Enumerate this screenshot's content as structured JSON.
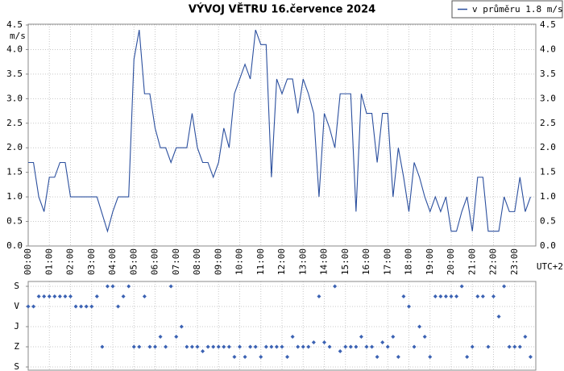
{
  "chart_data": [
    {
      "type": "line",
      "title": "VÝVOJ VĚTRU  16.července 2024",
      "ylabel": "m/s",
      "xlabel": "UTC+2",
      "x": [
        0,
        0.25,
        0.5,
        0.75,
        1,
        1.25,
        1.5,
        1.75,
        2,
        2.25,
        2.5,
        2.75,
        3,
        3.25,
        3.5,
        3.75,
        4,
        4.25,
        4.5,
        4.75,
        5,
        5.25,
        5.5,
        5.75,
        6,
        6.25,
        6.5,
        6.75,
        7,
        7.25,
        7.5,
        7.75,
        8,
        8.25,
        8.5,
        8.75,
        9,
        9.25,
        9.5,
        9.75,
        10,
        10.25,
        10.5,
        10.75,
        11,
        11.25,
        11.5,
        11.75,
        12,
        12.25,
        12.5,
        12.75,
        13,
        13.25,
        13.5,
        13.75,
        14,
        14.25,
        14.5,
        14.75,
        15,
        15.25,
        15.5,
        15.75,
        16,
        16.25,
        16.5,
        16.75,
        17,
        17.25,
        17.5,
        17.75,
        18,
        18.25,
        18.5,
        18.75,
        19,
        19.25,
        19.5,
        19.75,
        20,
        20.25,
        20.5,
        20.75,
        21,
        21.25,
        21.5,
        21.75,
        22,
        22.25,
        22.5,
        22.75,
        23,
        23.25,
        23.5,
        23.75
      ],
      "series": [
        {
          "name": "v průměru 1.8 m/s",
          "color": "#2b4f9e",
          "values": [
            1.7,
            1.7,
            1.0,
            0.7,
            1.4,
            1.4,
            1.7,
            1.7,
            1.0,
            1.0,
            1.0,
            1.0,
            1.0,
            1.0,
            0.65,
            0.3,
            0.7,
            1.0,
            1.0,
            1.0,
            3.8,
            4.4,
            3.1,
            3.1,
            2.4,
            2.0,
            2.0,
            1.7,
            2.0,
            2.0,
            2.0,
            2.7,
            2.0,
            1.7,
            1.7,
            1.4,
            1.7,
            2.4,
            2.0,
            3.1,
            3.4,
            3.7,
            3.4,
            4.4,
            4.1,
            4.1,
            1.4,
            3.4,
            3.1,
            3.4,
            3.4,
            2.7,
            3.4,
            3.1,
            2.7,
            1.0,
            2.7,
            2.4,
            2.0,
            3.1,
            3.1,
            3.1,
            0.7,
            3.1,
            2.7,
            2.7,
            1.7,
            2.7,
            2.7,
            1.0,
            2.0,
            1.4,
            0.7,
            1.7,
            1.4,
            1.0,
            0.7,
            1.0,
            0.7,
            1.0,
            0.3,
            0.3,
            0.7,
            1.0,
            0.3,
            1.4,
            1.4,
            0.3,
            0.3,
            0.3,
            1.0,
            0.7,
            0.7,
            1.4,
            0.7,
            1.0
          ]
        }
      ],
      "xlim": [
        0,
        24
      ],
      "xticks": [
        {
          "value": 0,
          "label": "00:00"
        },
        {
          "value": 1,
          "label": "01:00"
        },
        {
          "value": 2,
          "label": "02:00"
        },
        {
          "value": 3,
          "label": "03:00"
        },
        {
          "value": 4,
          "label": "04:00"
        },
        {
          "value": 5,
          "label": "05:00"
        },
        {
          "value": 6,
          "label": "06:00"
        },
        {
          "value": 7,
          "label": "07:00"
        },
        {
          "value": 8,
          "label": "08:00"
        },
        {
          "value": 9,
          "label": "09:00"
        },
        {
          "value": 10,
          "label": "10:00"
        },
        {
          "value": 11,
          "label": "11:00"
        },
        {
          "value": 12,
          "label": "12:00"
        },
        {
          "value": 13,
          "label": "13:00"
        },
        {
          "value": 14,
          "label": "14:00"
        },
        {
          "value": 15,
          "label": "15:00"
        },
        {
          "value": 16,
          "label": "16:00"
        },
        {
          "value": 17,
          "label": "17:00"
        },
        {
          "value": 18,
          "label": "18:00"
        },
        {
          "value": 19,
          "label": "19:00"
        },
        {
          "value": 20,
          "label": "20:00"
        },
        {
          "value": 21,
          "label": "21:00"
        },
        {
          "value": 22,
          "label": "22:00"
        },
        {
          "value": 23,
          "label": "23:00"
        }
      ],
      "ylim": [
        0,
        4.5
      ],
      "yticks": [
        {
          "value": 0,
          "label": "0.0"
        },
        {
          "value": 0.5,
          "label": "0.5"
        },
        {
          "value": 1,
          "label": "1.0"
        },
        {
          "value": 1.5,
          "label": "1.5"
        },
        {
          "value": 2,
          "label": "2.0"
        },
        {
          "value": 2.5,
          "label": "2.5"
        },
        {
          "value": 3,
          "label": "3.0"
        },
        {
          "value": 3.5,
          "label": "3.5"
        },
        {
          "value": 4,
          "label": "4.0"
        },
        {
          "value": 4.5,
          "label": "4.5"
        }
      ],
      "grid": true,
      "legend": "top-right"
    },
    {
      "type": "scatter",
      "color": "#3b62b3",
      "x": [
        0,
        0.25,
        0.5,
        0.75,
        1,
        1.25,
        1.5,
        1.75,
        2,
        2.25,
        2.5,
        2.75,
        3,
        3.25,
        3.5,
        3.75,
        4,
        4.25,
        4.5,
        4.75,
        5,
        5.25,
        5.5,
        5.75,
        6,
        6.25,
        6.5,
        6.75,
        7,
        7.25,
        7.5,
        7.75,
        8,
        8.25,
        8.5,
        8.75,
        9,
        9.25,
        9.5,
        9.75,
        10,
        10.25,
        10.5,
        10.75,
        11,
        11.25,
        11.5,
        11.75,
        12,
        12.25,
        12.5,
        12.75,
        13,
        13.25,
        13.5,
        13.75,
        14,
        14.25,
        14.5,
        14.75,
        15,
        15.25,
        15.5,
        15.75,
        16,
        16.25,
        16.5,
        16.75,
        17,
        17.25,
        17.5,
        17.75,
        18,
        18.25,
        18.5,
        18.75,
        19,
        19.25,
        19.5,
        19.75,
        20,
        20.25,
        20.5,
        20.75,
        21,
        21.25,
        21.5,
        21.75,
        22,
        22.25,
        22.5,
        22.75,
        23,
        23.25,
        23.5,
        23.75
      ],
      "values": [
        90,
        90,
        45,
        45,
        45,
        45,
        45,
        45,
        45,
        90,
        90,
        90,
        90,
        45,
        270,
        0,
        0,
        90,
        45,
        0,
        270,
        270,
        45,
        270,
        270,
        225,
        270,
        0,
        225,
        180,
        270,
        270,
        270,
        290,
        270,
        270,
        270,
        270,
        270,
        315,
        270,
        315,
        270,
        270,
        315,
        270,
        270,
        270,
        270,
        315,
        225,
        270,
        270,
        270,
        250,
        45,
        250,
        270,
        0,
        290,
        270,
        270,
        270,
        225,
        270,
        270,
        315,
        250,
        270,
        225,
        315,
        45,
        90,
        270,
        180,
        225,
        315,
        45,
        45,
        45,
        45,
        45,
        0,
        315,
        270,
        45,
        45,
        270,
        45,
        135,
        0,
        270,
        270,
        270,
        225,
        315
      ],
      "xlim": [
        0,
        24
      ],
      "ylim": [
        360,
        0
      ],
      "yticks": [
        {
          "value": 0,
          "label": "S"
        },
        {
          "value": 90,
          "label": "V"
        },
        {
          "value": 180,
          "label": "J"
        },
        {
          "value": 270,
          "label": "Z"
        },
        {
          "value": 360,
          "label": "S"
        }
      ],
      "grid": true
    }
  ]
}
